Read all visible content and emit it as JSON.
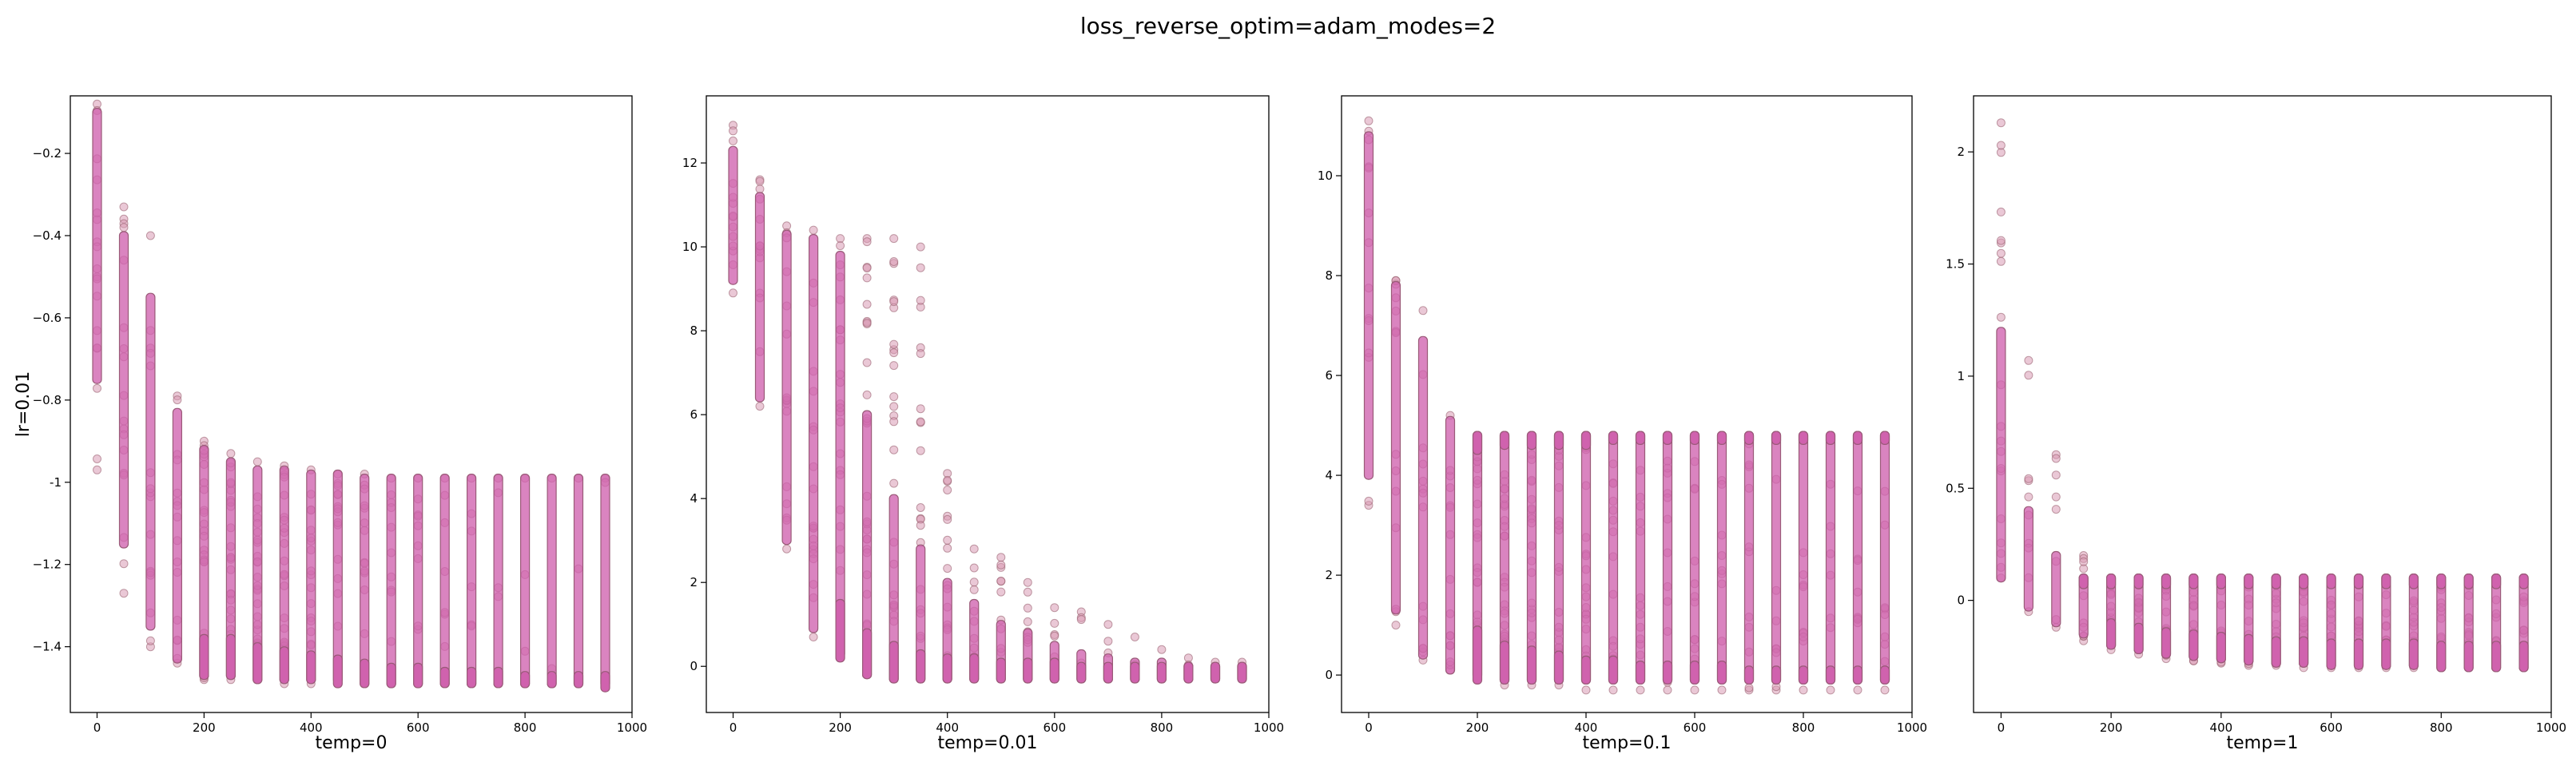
{
  "figure": {
    "title": "loss_reverse_optim=adam_modes=2"
  },
  "colors": {
    "point_face": "#d99ab4",
    "point_edge": "#9a6070",
    "dense_fill": "#d062ae",
    "dense_edge": "#9a5a78",
    "axes_edge": "#000000"
  },
  "chart_data": [
    {
      "type": "scatter",
      "title": "",
      "xlabel": "temp=0",
      "ylabel": "lr=0.01",
      "xlim": [
        -50,
        1000
      ],
      "ylim": [
        -1.56,
        -0.06
      ],
      "xticks": [
        0,
        200,
        400,
        600,
        800,
        1000
      ],
      "yticks": [
        -1.4,
        -1.2,
        -1.0,
        -0.8,
        -0.6,
        -0.4,
        -0.2
      ],
      "x": [
        0,
        50,
        100,
        150,
        200,
        250,
        300,
        350,
        400,
        450,
        500,
        550,
        600,
        650,
        700,
        750,
        800,
        850,
        900,
        950
      ],
      "dense_ranges": [
        [
          -0.75,
          -0.1
        ],
        [
          -1.15,
          -0.4
        ],
        [
          -1.35,
          -0.55
        ],
        [
          -1.43,
          -0.83
        ],
        [
          -1.47,
          -0.92
        ],
        [
          -1.47,
          -0.95
        ],
        [
          -1.48,
          -0.97
        ],
        [
          -1.48,
          -0.97
        ],
        [
          -1.48,
          -0.98
        ],
        [
          -1.48,
          -0.98
        ],
        [
          -1.49,
          -0.99
        ],
        [
          -1.49,
          -0.99
        ],
        [
          -1.49,
          -0.99
        ],
        [
          -1.49,
          -0.99
        ],
        [
          -1.49,
          -0.99
        ],
        [
          -1.49,
          -0.99
        ],
        [
          -1.49,
          -0.99
        ],
        [
          -1.49,
          -0.99
        ],
        [
          -1.49,
          -0.99
        ],
        [
          -1.49,
          -0.99
        ]
      ],
      "sparse_ranges": [
        [
          -0.97,
          -0.08
        ],
        [
          -1.27,
          -0.33
        ],
        [
          -1.4,
          -0.4
        ],
        [
          -1.44,
          -0.79
        ],
        [
          -1.48,
          -0.9
        ],
        [
          -1.48,
          -0.93
        ],
        [
          -1.48,
          -0.95
        ],
        [
          -1.49,
          -0.96
        ],
        [
          -1.49,
          -0.97
        ],
        [
          -1.49,
          -0.98
        ],
        [
          -1.49,
          -0.98
        ],
        [
          -1.49,
          -0.99
        ],
        [
          -1.49,
          -0.99
        ],
        [
          -1.49,
          -0.99
        ],
        [
          -1.49,
          -0.99
        ],
        [
          -1.49,
          -0.99
        ],
        [
          -1.49,
          -0.99
        ],
        [
          -1.49,
          -0.99
        ],
        [
          -1.49,
          -0.99
        ],
        [
          -1.49,
          -0.99
        ]
      ],
      "bottom_cluster": [
        null,
        null,
        null,
        null,
        [
          -1.47,
          -1.38
        ],
        [
          -1.47,
          -1.38
        ],
        [
          -1.48,
          -1.4
        ],
        [
          -1.48,
          -1.41
        ],
        [
          -1.48,
          -1.42
        ],
        [
          -1.49,
          -1.43
        ],
        [
          -1.49,
          -1.44
        ],
        [
          -1.49,
          -1.45
        ],
        [
          -1.49,
          -1.45
        ],
        [
          -1.49,
          -1.46
        ],
        [
          -1.49,
          -1.46
        ],
        [
          -1.49,
          -1.46
        ],
        [
          -1.49,
          -1.47
        ],
        [
          -1.49,
          -1.47
        ],
        [
          -1.49,
          -1.47
        ],
        [
          -1.5,
          -1.47
        ]
      ],
      "sparse_counts": [
        18,
        18,
        16,
        16,
        24,
        28,
        30,
        28,
        22,
        16,
        14,
        12,
        10,
        8,
        7,
        5,
        4,
        4,
        3,
        3
      ]
    },
    {
      "type": "scatter",
      "title": "",
      "xlabel": "temp=0.01",
      "ylabel": "",
      "xlim": [
        -50,
        1000
      ],
      "ylim": [
        -1.1,
        13.6
      ],
      "xticks": [
        0,
        200,
        400,
        600,
        800,
        1000
      ],
      "yticks": [
        0,
        2,
        4,
        6,
        8,
        10,
        12
      ],
      "x": [
        0,
        50,
        100,
        150,
        200,
        250,
        300,
        350,
        400,
        450,
        500,
        550,
        600,
        650,
        700,
        750,
        800,
        850,
        900,
        950
      ],
      "dense_ranges": [
        [
          9.2,
          12.3
        ],
        [
          6.4,
          11.2
        ],
        [
          3.0,
          10.3
        ],
        [
          0.9,
          10.2
        ],
        [
          0.3,
          9.8
        ],
        [
          -0.2,
          6.0
        ],
        [
          -0.3,
          4.0
        ],
        [
          -0.3,
          2.8
        ],
        [
          -0.3,
          2.0
        ],
        [
          -0.3,
          1.5
        ],
        [
          -0.3,
          1.0
        ],
        [
          -0.3,
          0.8
        ],
        [
          -0.3,
          0.5
        ],
        [
          -0.3,
          0.3
        ],
        [
          -0.3,
          0.2
        ],
        [
          -0.3,
          0.1
        ],
        [
          -0.3,
          0.1
        ],
        [
          -0.3,
          0.0
        ],
        [
          -0.3,
          0.0
        ],
        [
          -0.3,
          0.0
        ]
      ],
      "sparse_ranges": [
        [
          8.9,
          12.9
        ],
        [
          6.2,
          11.6
        ],
        [
          2.8,
          10.5
        ],
        [
          0.7,
          10.4
        ],
        [
          0.2,
          10.2
        ],
        [
          -0.2,
          10.2
        ],
        [
          -0.3,
          10.2
        ],
        [
          -0.3,
          10.0
        ],
        [
          -0.3,
          4.6
        ],
        [
          -0.3,
          2.8
        ],
        [
          -0.3,
          2.6
        ],
        [
          -0.3,
          2.0
        ],
        [
          -0.3,
          1.4
        ],
        [
          -0.3,
          1.3
        ],
        [
          -0.3,
          1.0
        ],
        [
          -0.3,
          0.7
        ],
        [
          -0.3,
          0.4
        ],
        [
          -0.3,
          0.2
        ],
        [
          -0.3,
          0.1
        ],
        [
          -0.3,
          0.1
        ]
      ],
      "bottom_cluster": [
        null,
        null,
        null,
        null,
        [
          0.2,
          1.5
        ],
        [
          -0.2,
          0.8
        ],
        [
          -0.3,
          0.5
        ],
        [
          -0.3,
          0.3
        ],
        [
          -0.3,
          0.2
        ],
        [
          -0.3,
          0.2
        ],
        [
          -0.3,
          0.1
        ],
        [
          -0.3,
          0.1
        ],
        [
          -0.3,
          0.1
        ],
        [
          -0.3,
          0.0
        ],
        [
          -0.3,
          0.0
        ],
        [
          -0.3,
          0.0
        ],
        [
          -0.3,
          0.0
        ],
        [
          -0.3,
          0.0
        ],
        [
          -0.3,
          0.0
        ],
        [
          -0.3,
          0.0
        ]
      ],
      "sparse_counts": [
        14,
        14,
        16,
        20,
        26,
        28,
        26,
        22,
        18,
        14,
        12,
        10,
        8,
        6,
        5,
        4,
        3,
        3,
        2,
        2
      ]
    },
    {
      "type": "scatter",
      "title": "",
      "xlabel": "temp=0.1",
      "ylabel": "",
      "xlim": [
        -50,
        1000
      ],
      "ylim": [
        -0.75,
        11.6
      ],
      "xticks": [
        0,
        200,
        400,
        600,
        800,
        1000
      ],
      "yticks": [
        0,
        2,
        4,
        6,
        8,
        10
      ],
      "x": [
        0,
        50,
        100,
        150,
        200,
        250,
        300,
        350,
        400,
        450,
        500,
        550,
        600,
        650,
        700,
        750,
        800,
        850,
        900,
        950
      ],
      "dense_ranges": [
        [
          4.0,
          10.8
        ],
        [
          1.3,
          7.8
        ],
        [
          0.4,
          6.7
        ],
        [
          0.1,
          5.1
        ],
        [
          0.0,
          4.8
        ],
        [
          -0.1,
          4.8
        ],
        [
          -0.1,
          4.8
        ],
        [
          -0.1,
          4.8
        ],
        [
          -0.1,
          4.8
        ],
        [
          -0.1,
          4.8
        ],
        [
          -0.1,
          4.8
        ],
        [
          -0.1,
          4.8
        ],
        [
          -0.1,
          4.8
        ],
        [
          -0.1,
          4.8
        ],
        [
          -0.1,
          4.8
        ],
        [
          -0.1,
          4.8
        ],
        [
          -0.1,
          4.8
        ],
        [
          -0.1,
          4.8
        ],
        [
          -0.1,
          4.8
        ],
        [
          -0.1,
          4.8
        ]
      ],
      "sparse_ranges": [
        [
          3.4,
          11.1
        ],
        [
          1.0,
          7.9
        ],
        [
          0.3,
          7.3
        ],
        [
          0.1,
          5.2
        ],
        [
          -0.1,
          4.8
        ],
        [
          -0.2,
          4.8
        ],
        [
          -0.2,
          4.8
        ],
        [
          -0.2,
          4.8
        ],
        [
          -0.3,
          4.8
        ],
        [
          -0.3,
          4.8
        ],
        [
          -0.3,
          4.8
        ],
        [
          -0.3,
          4.8
        ],
        [
          -0.3,
          4.8
        ],
        [
          -0.3,
          4.8
        ],
        [
          -0.3,
          4.8
        ],
        [
          -0.3,
          4.8
        ],
        [
          -0.3,
          4.8
        ],
        [
          -0.3,
          4.8
        ],
        [
          -0.3,
          4.8
        ],
        [
          -0.3,
          4.8
        ]
      ],
      "bottom_cluster": [
        null,
        null,
        null,
        null,
        [
          -0.1,
          0.9
        ],
        [
          -0.1,
          0.6
        ],
        [
          -0.1,
          0.5
        ],
        [
          -0.1,
          0.4
        ],
        [
          -0.1,
          0.3
        ],
        [
          -0.1,
          0.3
        ],
        [
          -0.1,
          0.2
        ],
        [
          -0.1,
          0.2
        ],
        [
          -0.1,
          0.2
        ],
        [
          -0.1,
          0.2
        ],
        [
          -0.1,
          0.1
        ],
        [
          -0.1,
          0.1
        ],
        [
          -0.1,
          0.1
        ],
        [
          -0.1,
          0.1
        ],
        [
          -0.1,
          0.1
        ],
        [
          -0.1,
          0.1
        ]
      ],
      "top_cluster": [
        null,
        null,
        null,
        null,
        [
          4.5,
          4.8
        ],
        [
          4.6,
          4.8
        ],
        [
          4.6,
          4.8
        ],
        [
          4.6,
          4.8
        ],
        [
          4.6,
          4.8
        ],
        [
          4.7,
          4.8
        ],
        [
          4.7,
          4.8
        ],
        [
          4.7,
          4.8
        ],
        [
          4.7,
          4.8
        ],
        [
          4.7,
          4.8
        ],
        [
          4.7,
          4.8
        ],
        [
          4.7,
          4.8
        ],
        [
          4.7,
          4.8
        ],
        [
          4.7,
          4.8
        ],
        [
          4.7,
          4.8
        ],
        [
          4.7,
          4.8
        ]
      ],
      "sparse_counts": [
        14,
        14,
        14,
        16,
        26,
        26,
        24,
        22,
        20,
        18,
        16,
        14,
        14,
        12,
        12,
        10,
        10,
        10,
        10,
        10
      ]
    },
    {
      "type": "scatter",
      "title": "",
      "xlabel": "temp=1",
      "ylabel": "",
      "xlim": [
        -50,
        1000
      ],
      "ylim": [
        -0.5,
        2.25
      ],
      "xticks": [
        0,
        200,
        400,
        600,
        800,
        1000
      ],
      "yticks": [
        0.0,
        0.5,
        1.0,
        1.5,
        2.0
      ],
      "x": [
        0,
        50,
        100,
        150,
        200,
        250,
        300,
        350,
        400,
        450,
        500,
        550,
        600,
        650,
        700,
        750,
        800,
        850,
        900,
        950
      ],
      "dense_ranges": [
        [
          0.1,
          1.2
        ],
        [
          -0.03,
          0.4
        ],
        [
          -0.1,
          0.2
        ],
        [
          -0.15,
          0.1
        ],
        [
          -0.2,
          0.1
        ],
        [
          -0.22,
          0.1
        ],
        [
          -0.24,
          0.1
        ],
        [
          -0.25,
          0.1
        ],
        [
          -0.26,
          0.1
        ],
        [
          -0.27,
          0.1
        ],
        [
          -0.28,
          0.1
        ],
        [
          -0.28,
          0.1
        ],
        [
          -0.29,
          0.1
        ],
        [
          -0.29,
          0.1
        ],
        [
          -0.29,
          0.1
        ],
        [
          -0.29,
          0.1
        ],
        [
          -0.3,
          0.1
        ],
        [
          -0.3,
          0.1
        ],
        [
          -0.3,
          0.1
        ],
        [
          -0.3,
          0.1
        ]
      ],
      "sparse_ranges": [
        [
          0.1,
          2.13
        ],
        [
          -0.05,
          1.07
        ],
        [
          -0.12,
          0.65
        ],
        [
          -0.18,
          0.2
        ],
        [
          -0.22,
          0.1
        ],
        [
          -0.24,
          0.1
        ],
        [
          -0.26,
          0.1
        ],
        [
          -0.27,
          0.1
        ],
        [
          -0.28,
          0.1
        ],
        [
          -0.29,
          0.1
        ],
        [
          -0.29,
          0.1
        ],
        [
          -0.3,
          0.1
        ],
        [
          -0.3,
          0.1
        ],
        [
          -0.3,
          0.1
        ],
        [
          -0.3,
          0.1
        ],
        [
          -0.3,
          0.1
        ],
        [
          -0.3,
          0.1
        ],
        [
          -0.3,
          0.1
        ],
        [
          -0.3,
          0.1
        ],
        [
          -0.3,
          0.1
        ]
      ],
      "bottom_cluster": [
        null,
        null,
        null,
        null,
        [
          -0.2,
          -0.1
        ],
        [
          -0.22,
          -0.12
        ],
        [
          -0.24,
          -0.14
        ],
        [
          -0.25,
          -0.15
        ],
        [
          -0.26,
          -0.16
        ],
        [
          -0.27,
          -0.17
        ],
        [
          -0.28,
          -0.18
        ],
        [
          -0.28,
          -0.18
        ],
        [
          -0.29,
          -0.19
        ],
        [
          -0.29,
          -0.19
        ],
        [
          -0.29,
          -0.19
        ],
        [
          -0.29,
          -0.19
        ],
        [
          -0.3,
          -0.2
        ],
        [
          -0.3,
          -0.2
        ],
        [
          -0.3,
          -0.2
        ],
        [
          -0.3,
          -0.2
        ]
      ],
      "top_cluster": [
        null,
        null,
        null,
        [
          0.07,
          0.1
        ],
        [
          0.07,
          0.1
        ],
        [
          0.07,
          0.1
        ],
        [
          0.07,
          0.1
        ],
        [
          0.07,
          0.1
        ],
        [
          0.07,
          0.1
        ],
        [
          0.07,
          0.1
        ],
        [
          0.07,
          0.1
        ],
        [
          0.07,
          0.1
        ],
        [
          0.07,
          0.1
        ],
        [
          0.07,
          0.1
        ],
        [
          0.07,
          0.1
        ],
        [
          0.07,
          0.1
        ],
        [
          0.07,
          0.1
        ],
        [
          0.07,
          0.1
        ],
        [
          0.07,
          0.1
        ],
        [
          0.07,
          0.1
        ]
      ],
      "sparse_counts": [
        20,
        10,
        8,
        10,
        14,
        14,
        14,
        14,
        14,
        14,
        14,
        14,
        14,
        14,
        14,
        14,
        14,
        14,
        12,
        12
      ]
    }
  ]
}
